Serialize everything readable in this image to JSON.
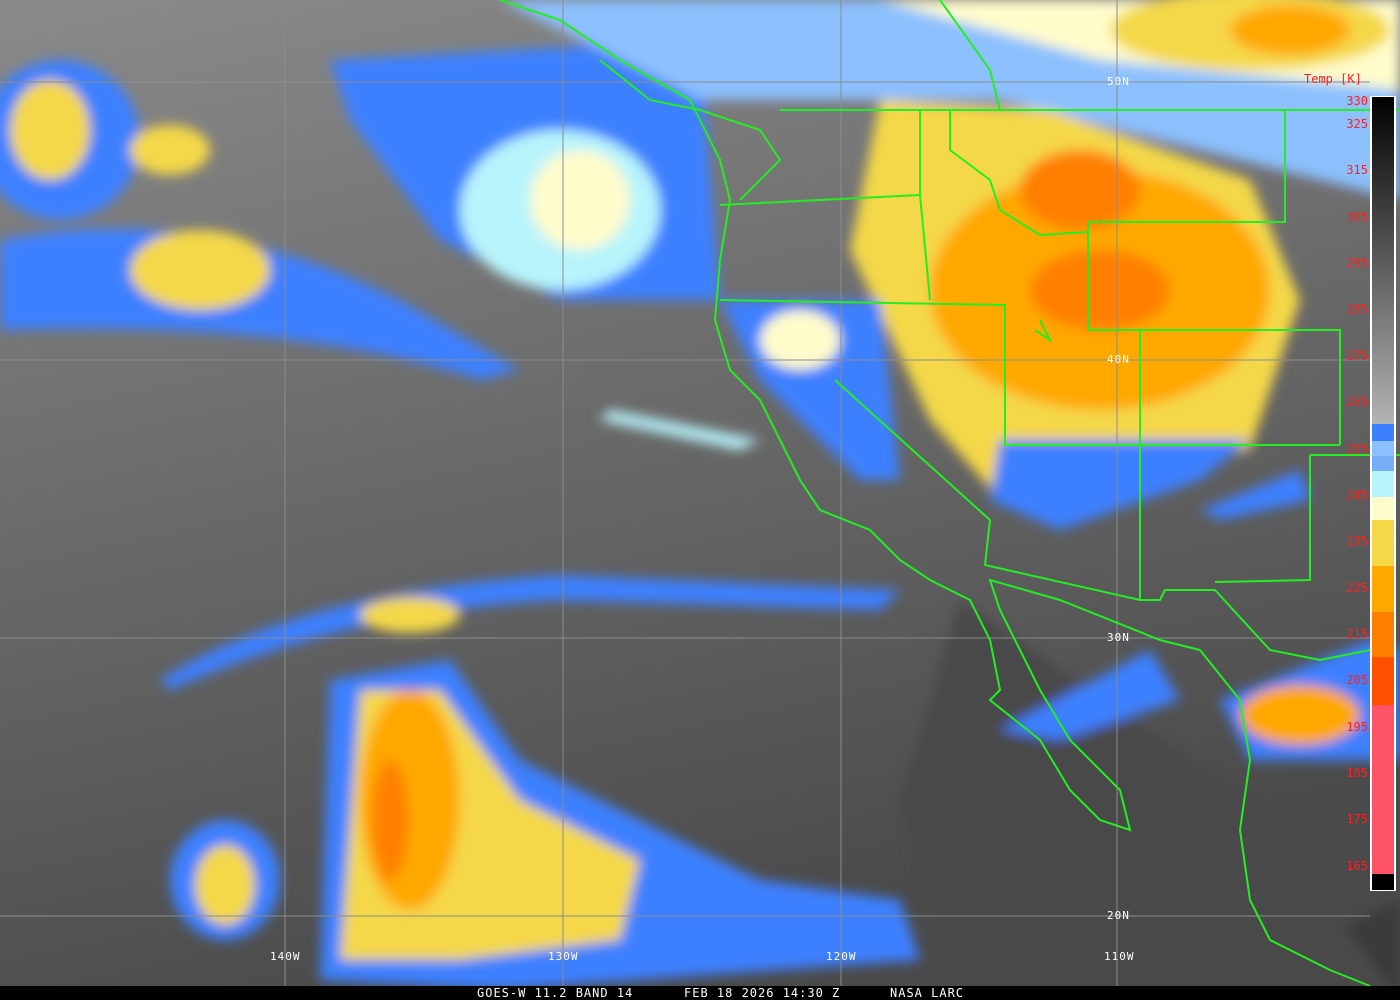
{
  "map": {
    "type": "satellite infrared imagery",
    "latitude_labels": [
      "50N",
      "40N",
      "30N",
      "20N"
    ],
    "longitude_labels": [
      "140W",
      "130W",
      "120W",
      "110W"
    ]
  },
  "colorbar": {
    "title": "Temp [K]",
    "ticks": [
      "330",
      "325",
      "315",
      "305",
      "295",
      "285",
      "275",
      "265",
      "255",
      "245",
      "235",
      "225",
      "215",
      "205",
      "195",
      "185",
      "175",
      "165"
    ],
    "colors": {
      "warm_gray_top": "#000000",
      "warm_gray_bottom": "#b4b4b4",
      "blue": "#3c80ff",
      "light_blue": "#8cc0ff",
      "mid_blue": "#78aef8",
      "cyan": "#b8f4fc",
      "cream": "#fffccc",
      "yellow": "#f4d848",
      "orange": "#ffa800",
      "dark_orange": "#ff8000",
      "red_orange": "#ff5000",
      "pink": "#ff5468"
    }
  },
  "footer": {
    "product": "GOES-W 11.2 BAND 14",
    "datetime": "FEB 18 2026 14:30 Z",
    "source": "NASA LARC"
  },
  "colors": {
    "borders": "#22ee22",
    "gridlines": "#8c8c8c"
  }
}
